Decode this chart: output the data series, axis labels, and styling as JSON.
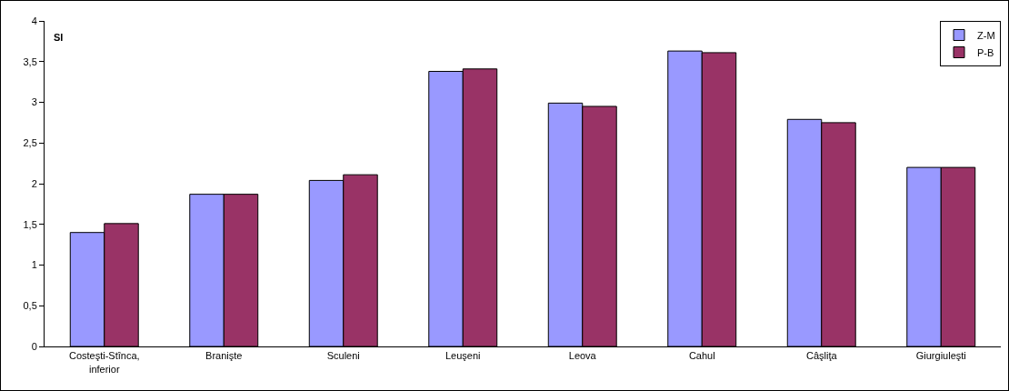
{
  "chart_data": {
    "type": "bar",
    "ylabel": "SI",
    "categories": [
      "Costeşti-Stînca, inferior",
      "Branişte",
      "Sculeni",
      "Leuşeni",
      "Leova",
      "Cahul",
      "Câşliţa",
      "Giurgiuleşti"
    ],
    "series": [
      {
        "name": "Z-M",
        "color": "#9999ff",
        "values": [
          1.4,
          1.87,
          2.04,
          3.38,
          2.99,
          3.63,
          2.79,
          2.2
        ]
      },
      {
        "name": "P-B",
        "color": "#993366",
        "values": [
          1.51,
          1.87,
          2.11,
          3.41,
          2.95,
          3.61,
          2.75,
          2.2
        ]
      }
    ],
    "ylim": [
      0,
      4
    ],
    "yticks": [
      0,
      {
        "value": 0.5,
        "label": "0,5"
      },
      1,
      {
        "value": 1.5,
        "label": "1,5"
      },
      2,
      {
        "value": 2.5,
        "label": "2,5"
      },
      3,
      {
        "value": 3.5,
        "label": "3,5"
      },
      4
    ],
    "grid": false,
    "legend": "top right"
  }
}
